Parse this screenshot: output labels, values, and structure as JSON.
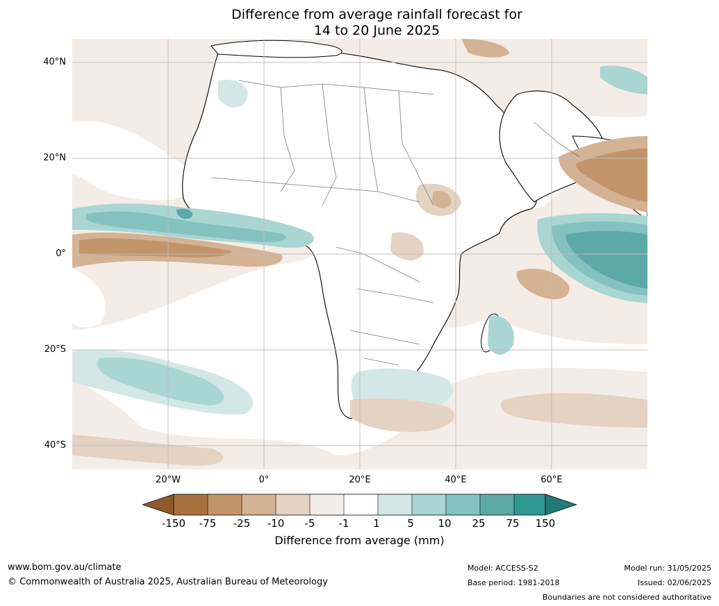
{
  "title": {
    "line1": "Difference from average rainfall forecast for",
    "line2": "14 to 20 June 2025"
  },
  "map": {
    "lat_labels": [
      "40°N",
      "20°N",
      "0°",
      "20°S",
      "40°S"
    ],
    "lon_labels": [
      "20°W",
      "0°",
      "20°E",
      "40°E",
      "60°E"
    ],
    "extent": {
      "lon_min": -40,
      "lon_max": 80,
      "lat_min": -45,
      "lat_max": 45
    }
  },
  "colorbar": {
    "ticks": [
      "-150",
      "-75",
      "-25",
      "-10",
      "-5",
      "-1",
      "1",
      "5",
      "10",
      "25",
      "75",
      "150"
    ],
    "colors": [
      "#8f5a2b",
      "#a8723f",
      "#c1946a",
      "#d4b294",
      "#e4d2c2",
      "#f4ece6",
      "#ffffff",
      "#d3e8e6",
      "#a9d5d2",
      "#84c2c0",
      "#5ca9a7",
      "#2f9893",
      "#247a76"
    ],
    "label": "Difference from average (mm)"
  },
  "footer": {
    "site": "www.bom.gov.au/climate",
    "copyright": "© Commonwealth of Australia 2025, Australian Bureau of Meteorology",
    "model": "Model: ACCESS-S2",
    "base_period": "Base period: 1981-2018",
    "model_run": "Model run: 31/05/2025",
    "issued": "Issued: 02/06/2025",
    "disclaimer": "Boundaries are not considered authoritative"
  }
}
